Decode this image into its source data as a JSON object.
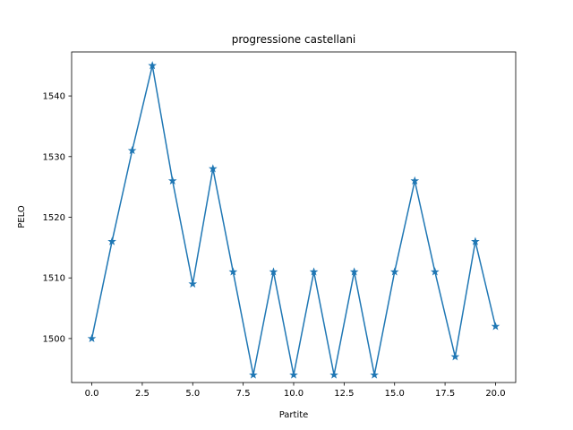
{
  "chart_data": {
    "type": "line",
    "title": "progressione castellani",
    "xlabel": "Partite",
    "ylabel": "PELO",
    "x": [
      0,
      1,
      2,
      3,
      4,
      5,
      6,
      7,
      8,
      9,
      10,
      11,
      12,
      13,
      14,
      15,
      16,
      17,
      18,
      19,
      20
    ],
    "series": [
      {
        "values": [
          1500,
          1516,
          1531,
          1545,
          1526,
          1509,
          1528,
          1511,
          1494,
          1511,
          1494,
          1511,
          1494,
          1511,
          1494,
          1511,
          1526,
          1511,
          1497,
          1516,
          1502
        ]
      }
    ],
    "xlim": [
      -1,
      21
    ],
    "ylim": [
      1492.75,
      1547.25
    ],
    "xticks": [
      0.0,
      2.5,
      5.0,
      7.5,
      10.0,
      12.5,
      15.0,
      17.5,
      20.0
    ],
    "xtick_labels": [
      "0.0",
      "2.5",
      "5.0",
      "7.5",
      "10.0",
      "12.5",
      "15.0",
      "17.5",
      "20.0"
    ],
    "yticks": [
      1500,
      1510,
      1520,
      1530,
      1540
    ],
    "ytick_labels": [
      "1500",
      "1510",
      "1520",
      "1530",
      "1540"
    ],
    "marker": "star",
    "grid": false,
    "line_color": "#1f77b4"
  }
}
